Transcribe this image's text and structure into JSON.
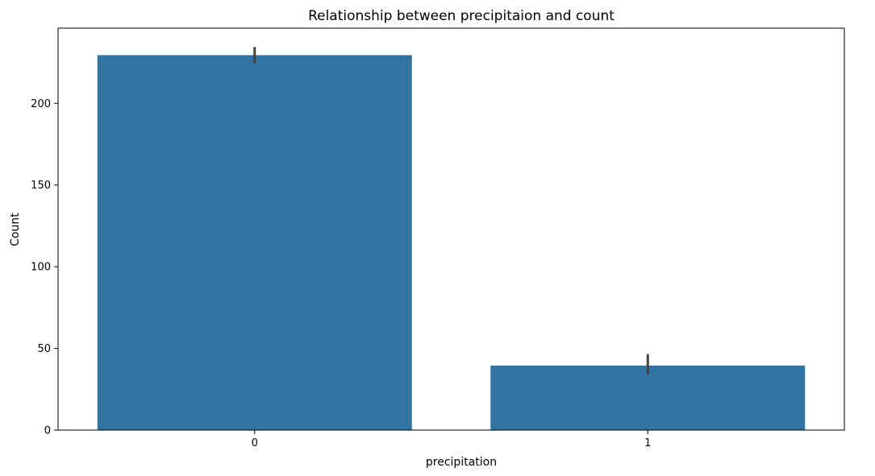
{
  "chart_data": {
    "type": "bar",
    "title": "Relationship between precipitaion and count",
    "xlabel": "precipitation",
    "ylabel": "Count",
    "categories": [
      "0",
      "1"
    ],
    "values": [
      229.5,
      39.5
    ],
    "error_bars": [
      [
        224.5,
        234.5
      ],
      [
        34.0,
        46.5
      ]
    ],
    "ylim": [
      0,
      246
    ],
    "yticks": [
      0,
      50,
      100,
      150,
      200
    ],
    "bar_color": "#3274a1",
    "error_color": "#424242",
    "grid": false,
    "legend": "none"
  }
}
